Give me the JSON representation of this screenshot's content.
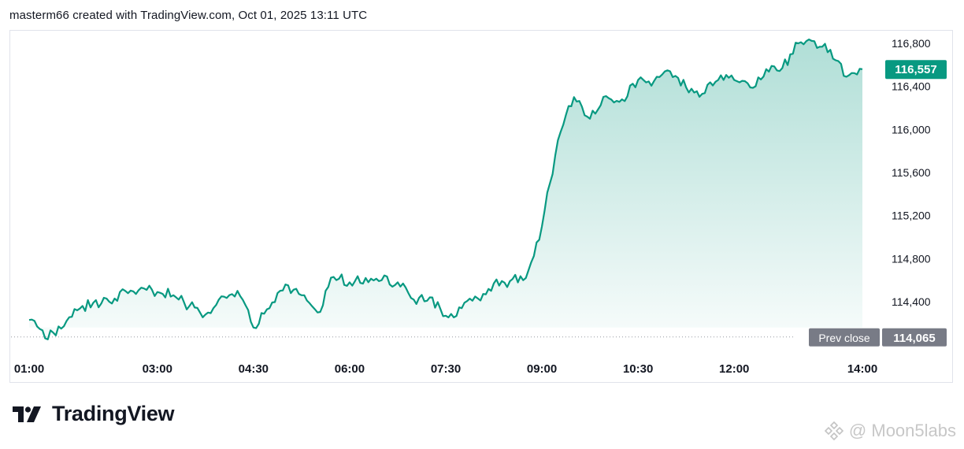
{
  "header": {
    "text": "masterm66 created with TradingView.com, Oct 01, 2025 13:11 UTC"
  },
  "brand": {
    "name": "TradingView",
    "logo_icon": "tradingview-logo-icon"
  },
  "watermark": {
    "text": "@ Moon5labs",
    "icon": "binance-diamond-icon"
  },
  "colors": {
    "line": "#089981",
    "area": "#089981",
    "prev_close_badge": "#787b86",
    "grid_border": "#e0e3eb"
  },
  "chart_data": {
    "type": "area",
    "x_labels": [
      "01:00",
      "03:00",
      "04:30",
      "06:00",
      "07:30",
      "09:00",
      "10:30",
      "12:00",
      "14:00"
    ],
    "y_ticks": [
      "114,400",
      "114,800",
      "115,200",
      "115,600",
      "116,000",
      "116,400",
      "116,800"
    ],
    "ylim": [
      114000,
      116950
    ],
    "last_value": 116557,
    "last_value_label": "116,557",
    "prev_close": {
      "label": "Prev close",
      "value": 114065,
      "value_label": "114,065"
    },
    "series": [
      {
        "x": [
          "01:00",
          "01:15",
          "01:30",
          "01:45",
          "02:00",
          "02:15",
          "02:30",
          "02:45",
          "03:00",
          "03:15",
          "03:30",
          "03:45",
          "04:00",
          "04:15",
          "04:30",
          "04:45",
          "05:00",
          "05:15",
          "05:30",
          "05:45",
          "06:00",
          "06:15",
          "06:30",
          "06:45",
          "07:00",
          "07:15",
          "07:30",
          "07:45",
          "08:00",
          "08:15",
          "08:30",
          "08:45",
          "09:00",
          "09:15",
          "09:30",
          "09:45",
          "10:00",
          "10:15",
          "10:30",
          "10:45",
          "11:00",
          "11:15",
          "11:30",
          "11:45",
          "12:00",
          "12:15",
          "12:30",
          "12:45",
          "13:00",
          "13:15",
          "13:30",
          "13:45",
          "14:00"
        ],
        "values": [
          114230,
          114060,
          114150,
          114320,
          114390,
          114400,
          114500,
          114530,
          114490,
          114460,
          114360,
          114280,
          114450,
          114500,
          114160,
          114340,
          114560,
          114460,
          114300,
          114630,
          114580,
          114620,
          114600,
          114580,
          114420,
          114440,
          114270,
          114340,
          114430,
          114570,
          114590,
          114620,
          115100,
          115900,
          116300,
          116100,
          116310,
          116280,
          116460,
          116450,
          116540,
          116390,
          116330,
          116460,
          116460,
          116390,
          116560,
          116570,
          116800,
          116820,
          116740,
          116490,
          116560
        ]
      }
    ]
  }
}
